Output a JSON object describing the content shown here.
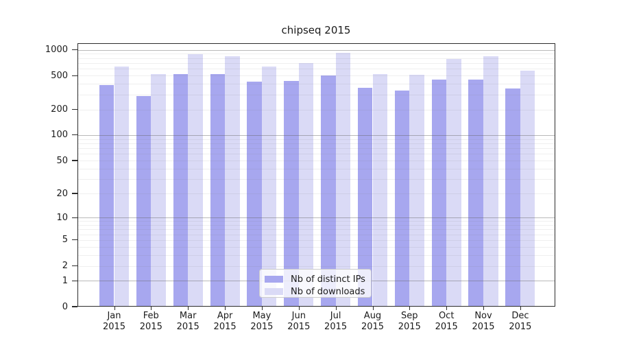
{
  "title": "chipseq 2015",
  "colors": {
    "distinct_ips": "#a7a7ef",
    "downloads": "#dadaf6",
    "grid_major": "rgba(100,100,100,0.45)",
    "grid_minor": "rgba(120,120,120,0.12)",
    "spine": "#2b2b2b",
    "text": "#1a1a1a",
    "legend_border": "#cccccc"
  },
  "chart_data": {
    "type": "bar",
    "title": "chipseq 2015",
    "xlabel": "",
    "ylabel": "",
    "categories": [
      "Jan",
      "Feb",
      "Mar",
      "Apr",
      "May",
      "Jun",
      "Jul",
      "Aug",
      "Sep",
      "Oct",
      "Nov",
      "Dec"
    ],
    "category_year": "2015",
    "series": [
      {
        "name": "Nb of distinct IPs",
        "color": "#a7a7ef",
        "values": [
          388,
          288,
          523,
          523,
          423,
          436,
          502,
          358,
          336,
          451,
          452,
          353
        ]
      },
      {
        "name": "Nb of downloads",
        "color": "#dadaf6",
        "values": [
          642,
          523,
          886,
          846,
          636,
          700,
          918,
          524,
          508,
          783,
          848,
          568
        ]
      }
    ],
    "y_scale": "log1p",
    "y_ticks": [
      0,
      1,
      2,
      5,
      10,
      20,
      50,
      100,
      200,
      500,
      1000
    ],
    "y_minor_gridlines": [
      2,
      3,
      4,
      5,
      6,
      7,
      8,
      9,
      20,
      30,
      40,
      50,
      60,
      70,
      80,
      90,
      200,
      300,
      400,
      500,
      600,
      700,
      800,
      900
    ],
    "y_major_gridlines": [
      1,
      10,
      100,
      1000
    ],
    "ylim": [
      0,
      1200
    ],
    "grid": true,
    "legend_position": "lower center"
  },
  "legend": {
    "items": [
      {
        "label": "Nb of distinct IPs",
        "color": "#a7a7ef"
      },
      {
        "label": "Nb of downloads",
        "color": "#dadaf6"
      }
    ]
  }
}
